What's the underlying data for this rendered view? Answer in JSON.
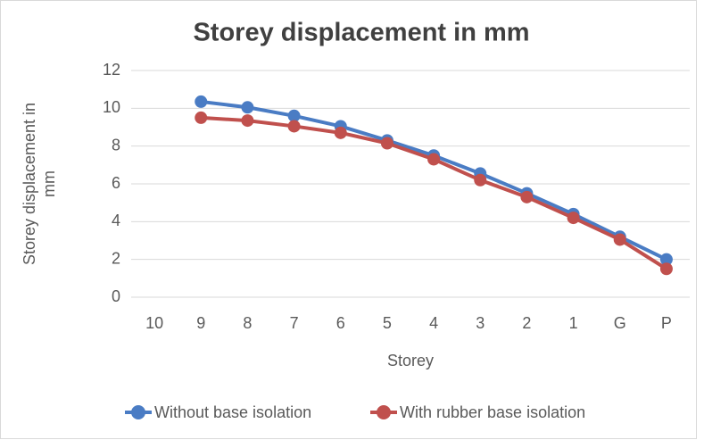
{
  "chart_data": {
    "type": "line",
    "title": "Storey displacement in mm",
    "x_label": "Storey",
    "y_label": "Storey displacement in mm",
    "categories": [
      "10",
      "9",
      "8",
      "7",
      "6",
      "5",
      "4",
      "3",
      "2",
      "1",
      "G",
      "P"
    ],
    "series": [
      {
        "name": "Without base isolation",
        "color": "#4a7cc4",
        "values": [
          null,
          10.35,
          10.05,
          9.6,
          9.05,
          8.3,
          7.5,
          6.55,
          5.5,
          4.4,
          3.2,
          2.0
        ]
      },
      {
        "name": "With rubber base isolation",
        "color": "#c0504d",
        "values": [
          null,
          9.5,
          9.35,
          9.05,
          8.7,
          8.15,
          7.3,
          6.2,
          5.3,
          4.2,
          3.05,
          1.5
        ]
      }
    ],
    "ylim": [
      0,
      12
    ],
    "yticks": [
      0,
      2,
      4,
      6,
      8,
      10,
      12
    ],
    "grid": true,
    "legend": "bottom"
  }
}
